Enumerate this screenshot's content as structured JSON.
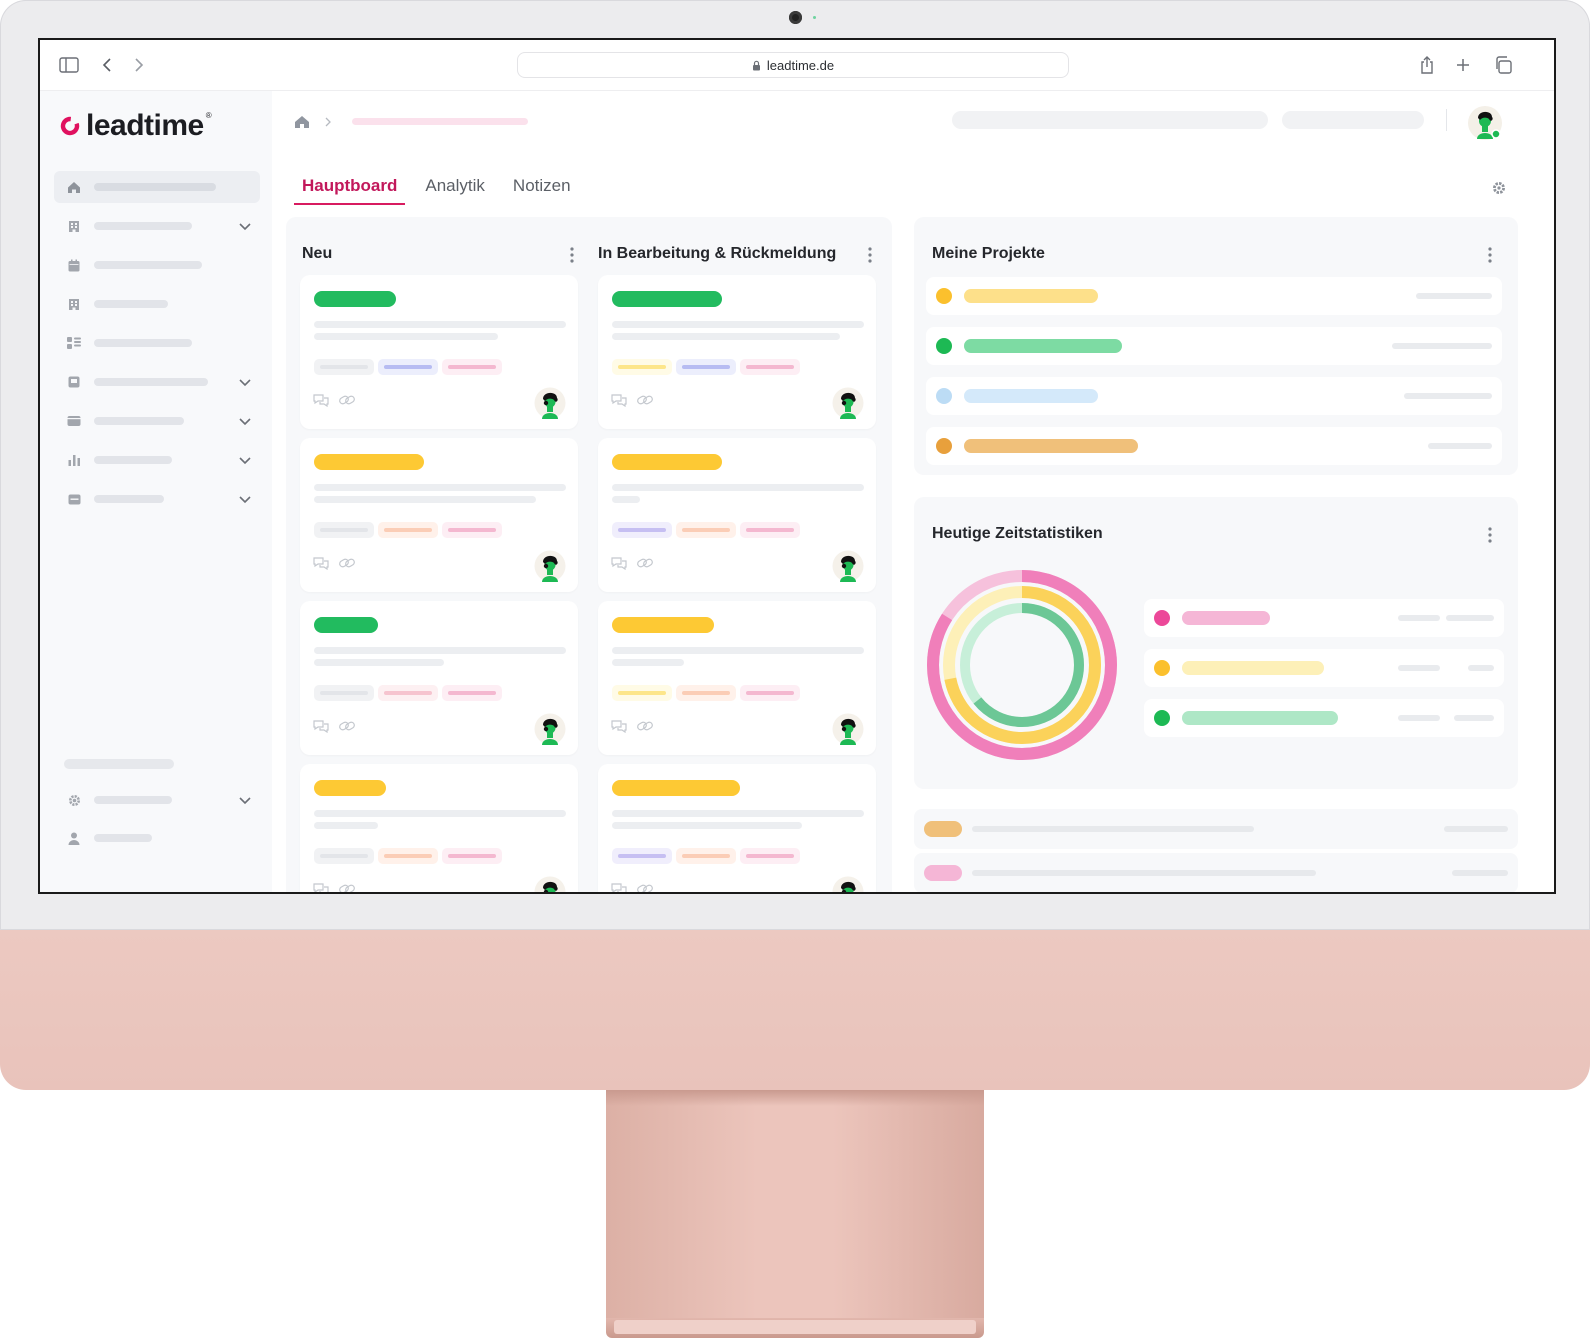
{
  "browser": {
    "url": "leadtime.de"
  },
  "app": {
    "logo_text": "leadtime",
    "logo_mark": "®"
  },
  "sidebar": {
    "items": [
      {
        "icon": "home-icon",
        "active": true,
        "has_chevron": false
      },
      {
        "icon": "building-icon",
        "has_chevron": true
      },
      {
        "icon": "calendar-icon",
        "has_chevron": false
      },
      {
        "icon": "building-icon",
        "has_chevron": false
      },
      {
        "icon": "grid-list-icon",
        "has_chevron": false
      },
      {
        "icon": "board-icon",
        "has_chevron": true
      },
      {
        "icon": "wallet-icon",
        "has_chevron": true
      },
      {
        "icon": "bar-chart-icon",
        "has_chevron": true
      },
      {
        "icon": "card-icon",
        "has_chevron": true
      }
    ],
    "footer_items": [
      {
        "icon": "gear-icon",
        "has_chevron": true
      },
      {
        "icon": "user-icon",
        "has_chevron": false
      }
    ]
  },
  "tabs": [
    {
      "label": "Hauptboard",
      "active": true
    },
    {
      "label": "Analytik",
      "active": false
    },
    {
      "label": "Notizen",
      "active": false
    }
  ],
  "board": {
    "columns": [
      {
        "title": "Neu"
      },
      {
        "title": "In Bearbeitung & Rückmeldung"
      }
    ]
  },
  "projects": {
    "title": "Meine Projekte",
    "colors": [
      "#fbc02d",
      "#1db954",
      "#bcdcf5",
      "#e8a03c"
    ]
  },
  "stats": {
    "title": "Heutige Zeitstatistiken",
    "colors": [
      "#ec4899",
      "#fbc02d",
      "#1db954"
    ]
  },
  "colors": {
    "accent": "#d81b60",
    "green": "#1db954",
    "yellow": "#fbc02d"
  }
}
